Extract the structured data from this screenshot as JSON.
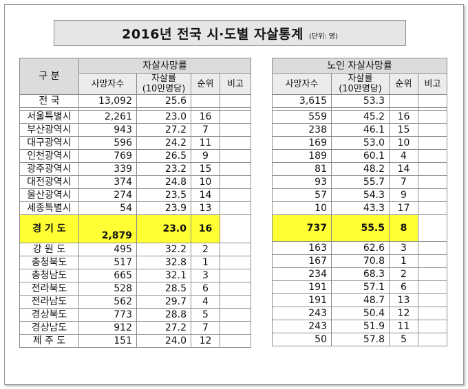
{
  "title": "2016년 전국 시·도별 자살통계",
  "unit": "(단위: 명)",
  "headers": {
    "gubun": "구 분",
    "left_group": "자살사망률",
    "right_group": "노인 자살사망률",
    "deaths": "사망자수",
    "rate": "자살률",
    "rate_sub": "(10만명당)",
    "rank": "순위",
    "note": "비고"
  },
  "rows": [
    {
      "region": "전 국",
      "deaths": "13,092",
      "rate": "25.6",
      "rank": "",
      "e_deaths": "3,615",
      "e_rate": "53.3",
      "e_rank": ""
    },
    {
      "region": "서울특별시",
      "deaths": "2,261",
      "rate": "23.0",
      "rank": "16",
      "e_deaths": "559",
      "e_rate": "45.2",
      "e_rank": "16"
    },
    {
      "region": "부산광역시",
      "deaths": "943",
      "rate": "27.2",
      "rank": "7",
      "e_deaths": "238",
      "e_rate": "46.1",
      "e_rank": "15"
    },
    {
      "region": "대구광역시",
      "deaths": "596",
      "rate": "24.2",
      "rank": "11",
      "e_deaths": "169",
      "e_rate": "53.0",
      "e_rank": "10"
    },
    {
      "region": "인천광역시",
      "deaths": "769",
      "rate": "26.5",
      "rank": "9",
      "e_deaths": "189",
      "e_rate": "60.1",
      "e_rank": "4"
    },
    {
      "region": "광주광역시",
      "deaths": "339",
      "rate": "23.2",
      "rank": "15",
      "e_deaths": "81",
      "e_rate": "48.2",
      "e_rank": "14"
    },
    {
      "region": "대전광역시",
      "deaths": "374",
      "rate": "24.8",
      "rank": "10",
      "e_deaths": "93",
      "e_rate": "55.7",
      "e_rank": "7"
    },
    {
      "region": "울산광역시",
      "deaths": "274",
      "rate": "23.5",
      "rank": "14",
      "e_deaths": "57",
      "e_rate": "54.3",
      "e_rank": "9"
    },
    {
      "region": "세종특별시",
      "deaths": "54",
      "rate": "23.9",
      "rank": "13",
      "e_deaths": "10",
      "e_rate": "43.3",
      "e_rank": "17"
    },
    {
      "region": "경 기 도",
      "deaths": "2,879",
      "rate": "23.0",
      "rank": "16",
      "e_deaths": "737",
      "e_rate": "55.5",
      "e_rank": "8"
    },
    {
      "region": "강 원 도",
      "deaths": "495",
      "rate": "32.2",
      "rank": "2",
      "e_deaths": "163",
      "e_rate": "62.6",
      "e_rank": "3"
    },
    {
      "region": "충청북도",
      "deaths": "517",
      "rate": "32.8",
      "rank": "1",
      "e_deaths": "167",
      "e_rate": "70.8",
      "e_rank": "1"
    },
    {
      "region": "충청남도",
      "deaths": "665",
      "rate": "32.1",
      "rank": "3",
      "e_deaths": "234",
      "e_rate": "68.3",
      "e_rank": "2"
    },
    {
      "region": "전라북도",
      "deaths": "528",
      "rate": "28.5",
      "rank": "6",
      "e_deaths": "191",
      "e_rate": "57.1",
      "e_rank": "6"
    },
    {
      "region": "전라남도",
      "deaths": "562",
      "rate": "29.7",
      "rank": "4",
      "e_deaths": "191",
      "e_rate": "48.7",
      "e_rank": "13"
    },
    {
      "region": "경상북도",
      "deaths": "773",
      "rate": "28.8",
      "rank": "5",
      "e_deaths": "243",
      "e_rate": "50.4",
      "e_rank": "12"
    },
    {
      "region": "경상남도",
      "deaths": "912",
      "rate": "27.2",
      "rank": "7",
      "e_deaths": "243",
      "e_rate": "51.9",
      "e_rank": "11"
    },
    {
      "region": "제 주 도",
      "deaths": "151",
      "rate": "24.0",
      "rank": "12",
      "e_deaths": "50",
      "e_rate": "57.8",
      "e_rank": "5"
    }
  ],
  "colors": {
    "highlight": "#ffff33",
    "header": "#dcdcdc",
    "border": "#8c8c8c"
  }
}
